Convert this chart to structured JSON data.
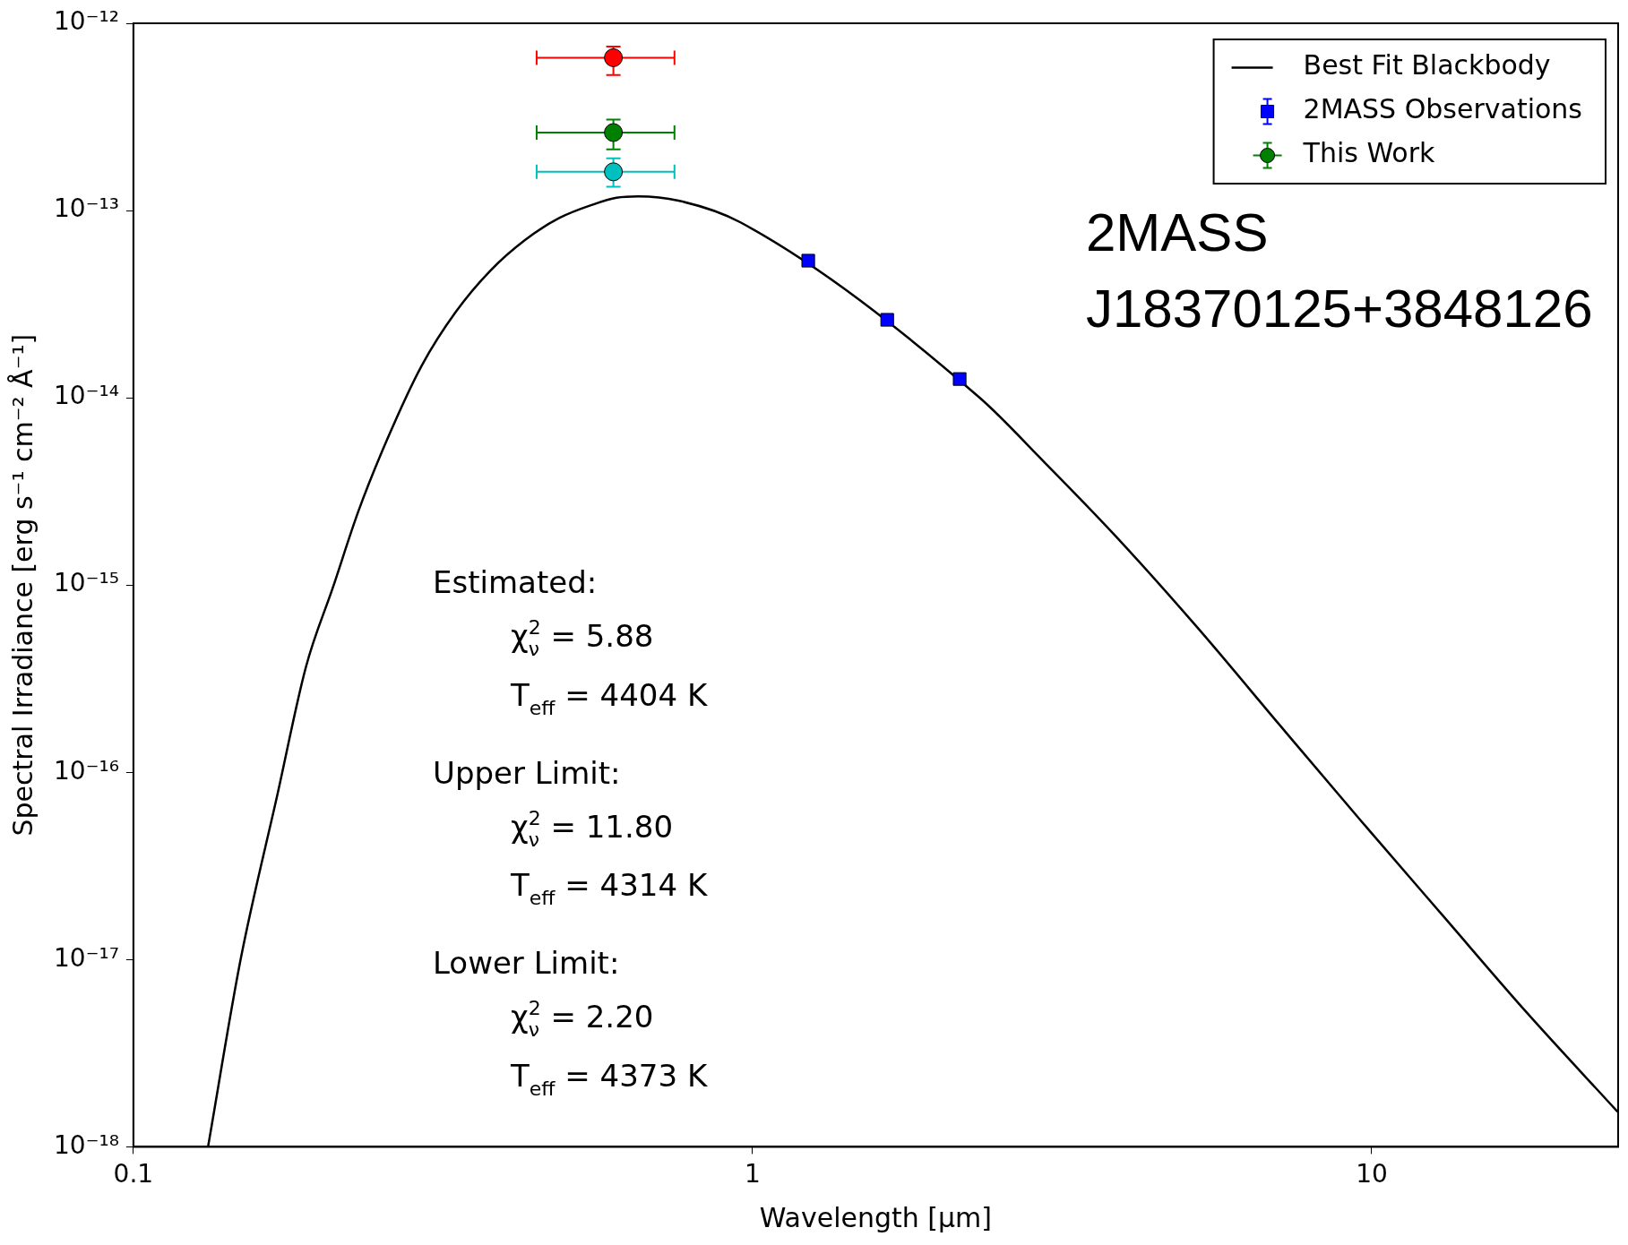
{
  "chart_data": {
    "type": "scatter",
    "xlabel": "Wavelength [μm]",
    "ylabel": "Spectral Irradiance [erg s⁻¹ cm⁻² Å⁻¹]",
    "log": "xy",
    "grid": false,
    "legend": "top right",
    "xlim": [
      0.1,
      25
    ],
    "xticks": [
      0.1,
      1,
      10
    ],
    "ylim": [
      1e-18,
      1e-12
    ],
    "yticks": [
      {
        "value": 1e-18,
        "label": "10⁻¹⁸"
      },
      {
        "value": 1e-17,
        "label": "10⁻¹⁷"
      },
      {
        "value": 1e-16,
        "label": "10⁻¹⁶"
      },
      {
        "value": 1e-15,
        "label": "10⁻¹⁵"
      },
      {
        "value": 1e-14,
        "label": "10⁻¹⁴"
      },
      {
        "value": 1e-13,
        "label": "10⁻¹³"
      },
      {
        "value": 1e-12,
        "label": "10⁻¹²"
      }
    ],
    "series": [
      {
        "name": "Best Fit Blackbody",
        "type": "line",
        "color": "#000000",
        "marker": "none",
        "x": [
          0.132,
          0.149,
          0.171,
          0.19,
          0.21,
          0.231,
          0.257,
          0.292,
          0.332,
          0.377,
          0.429,
          0.488,
          0.554,
          0.603,
          0.653,
          0.759,
          0.956,
          2.32,
          2.96,
          3.85,
          5.23,
          7.1,
          9.63,
          13.06,
          17.7,
          24.9
        ],
        "values": [
          1e-18,
          1e-17,
          7.7e-17,
          3.66e-16,
          9.7e-16,
          2.49e-15,
          6e-15,
          1.48e-14,
          2.89e-14,
          4.77e-14,
          6.96e-14,
          9.14e-14,
          1.08e-13,
          1.17e-13,
          1.19e-13,
          1.13e-13,
          8.65e-14,
          1.01e-14,
          4.53e-15,
          1.84e-15,
          5.93e-16,
          1.79e-16,
          5.46e-17,
          1.7e-17,
          5.32e-18,
          1.55e-18
        ]
      },
      {
        "name": "2MASS Observations",
        "color": "#0000ff",
        "marker": "square",
        "x": [
          1.23,
          1.65,
          2.16
        ],
        "values": [
          5.4e-14,
          2.61e-14,
          1.26e-14
        ]
      },
      {
        "name": "This Work",
        "color": "#008000",
        "marker": "circle",
        "x": [
          0.596
        ],
        "values": [
          2.61e-13
        ],
        "errors": [
          [
            2.12e-13,
            3.06e-13
          ]
        ],
        "xerrors": [
          [
            0.448,
            0.748
          ]
        ]
      },
      {
        "color": "#ff0000",
        "marker": "circle",
        "x": [
          0.596
        ],
        "values": [
          6.55e-13
        ],
        "errors": [
          [
            5.3e-13,
            7.5e-13
          ]
        ],
        "xerrors": [
          [
            0.448,
            0.748
          ]
        ]
      },
      {
        "color": "#00bfbf",
        "marker": "circle",
        "x": [
          0.596
        ],
        "values": [
          1.61e-13
        ],
        "errors": [
          [
            1.34e-13,
            1.9e-13
          ]
        ],
        "xerrors": [
          [
            0.448,
            0.748
          ]
        ]
      }
    ],
    "annotations": [
      "2MASS J18370125+3848126",
      "Estimated:",
      "χ$_{ν}$$^{2}$ = 5.88",
      "T$_{eff}$ = 4404 K",
      "Upper Limit:",
      "χ$_{ν}$$^{2}$ = 11.80",
      "T$_{eff}$ = 4314 K",
      "Lower Limit:",
      "χ$_{ν}$$^{2}$ = 2.20",
      "T$_{eff}$ = 4373 K"
    ]
  }
}
